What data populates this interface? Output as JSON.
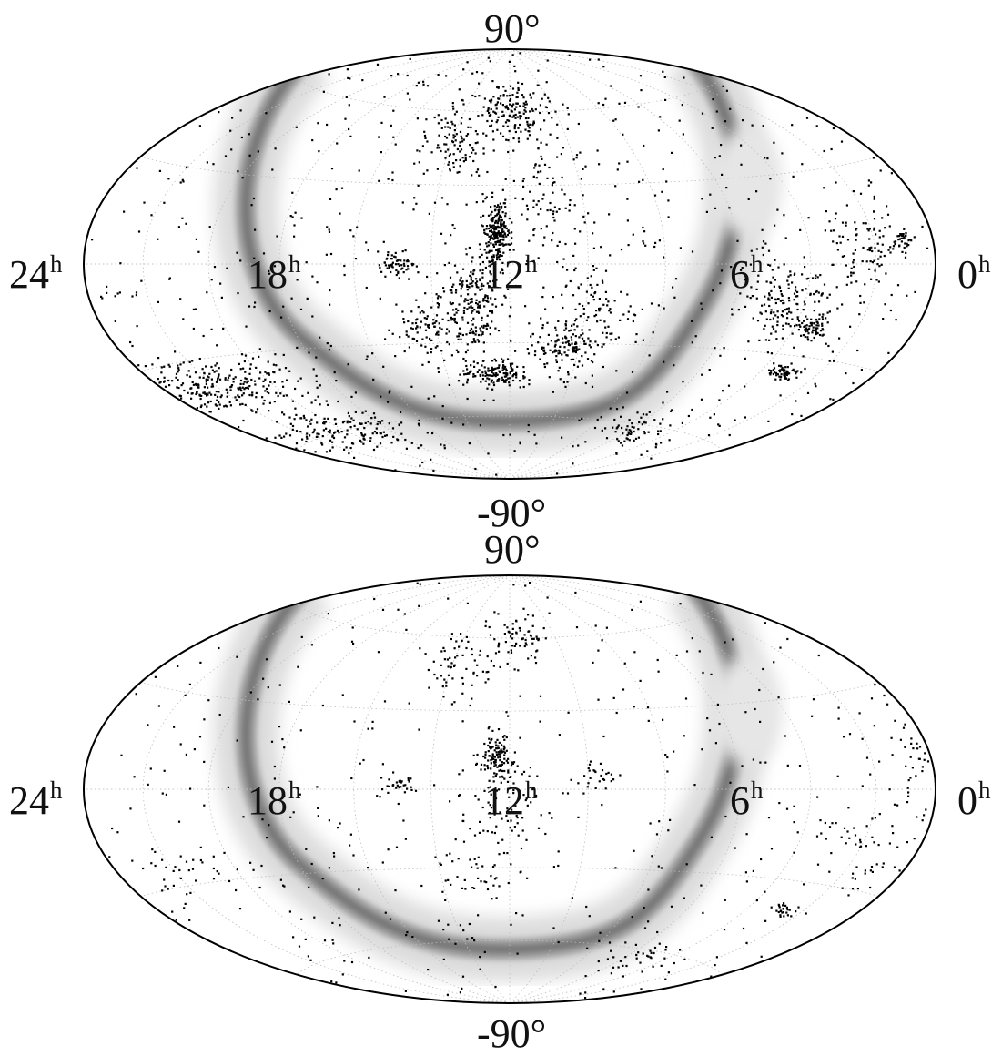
{
  "maps": [
    {
      "dec_top": "90°",
      "dec_bottom": "-90°",
      "ra_left": {
        "num": "24",
        "unit": "h"
      },
      "ra_mid_left": {
        "num": "18",
        "unit": "h"
      },
      "ra_center": {
        "num": "12",
        "unit": "h"
      },
      "ra_mid_right": {
        "num": "6",
        "unit": "h"
      },
      "ra_right": {
        "num": "0",
        "unit": "h"
      }
    },
    {
      "dec_top": "90°",
      "dec_bottom": "-90°",
      "ra_left": {
        "num": "24",
        "unit": "h"
      },
      "ra_mid_left": {
        "num": "18",
        "unit": "h"
      },
      "ra_center": {
        "num": "12",
        "unit": "h"
      },
      "ra_mid_right": {
        "num": "6",
        "unit": "h"
      },
      "ra_right": {
        "num": "0",
        "unit": "h"
      }
    }
  ],
  "colors": {
    "band": "#6e6e6e",
    "points": "#000000",
    "grid": "#bdbdbd",
    "outline": "#000000"
  }
}
